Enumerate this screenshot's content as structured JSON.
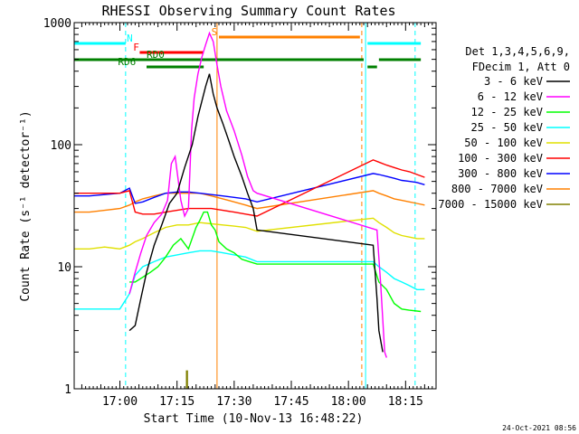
{
  "chart_data": {
    "type": "line",
    "title": "RHESSI Observing Summary Count Rates",
    "xlabel": "Start Time (10-Nov-13 16:48:22)",
    "ylabel": "Count Rate (s⁻¹ detector⁻¹)",
    "yscale": "log",
    "ylim": [
      1,
      1000
    ],
    "xlim_minutes": [
      0,
      95
    ],
    "x_ticks": [
      {
        "min": 12,
        "label": "17:00"
      },
      {
        "min": 27,
        "label": "17:15"
      },
      {
        "min": 42,
        "label": "17:30"
      },
      {
        "min": 57,
        "label": "17:45"
      },
      {
        "min": 72,
        "label": "18:00"
      },
      {
        "min": 87,
        "label": "18:15"
      }
    ],
    "y_ticks": [
      {
        "value": 1,
        "label": "1"
      },
      {
        "value": 10,
        "label": "10"
      },
      {
        "value": 100,
        "label": "100"
      },
      {
        "value": 1000,
        "label": "1000"
      }
    ],
    "legend_header": [
      "Det 1,3,4,5,6,9,",
      "FDecim 1, Att 0"
    ],
    "legend_placement": "right",
    "series": [
      {
        "name": "3 - 6 keV",
        "color": "#000000",
        "x": [
          14.5,
          16,
          17.5,
          19,
          21,
          23,
          25,
          27,
          29,
          31,
          32.5,
          34.5,
          35.5,
          36.5,
          37.5,
          39,
          40.5,
          42,
          44,
          45.5,
          47,
          48,
          78.5,
          79.5,
          80,
          81
        ],
        "y": [
          3,
          3.3,
          5.5,
          9,
          15,
          22,
          33,
          40,
          65,
          100,
          170,
          300,
          380,
          260,
          200,
          150,
          110,
          80,
          55,
          40,
          30,
          20,
          15,
          5.5,
          3,
          2
        ]
      },
      {
        "name": "6 - 12 keV",
        "color": "#ff00ff",
        "x": [
          14.5,
          16,
          17.5,
          19,
          21,
          23,
          24.5,
          25.5,
          26.5,
          28,
          29,
          30,
          30.8,
          31.5,
          32.5,
          33.5,
          34.5,
          35.5,
          36.5,
          37.5,
          38.5,
          40,
          42,
          44,
          45.5,
          47,
          48,
          79.5,
          80.5,
          81.5,
          82
        ],
        "y": [
          6,
          9,
          13,
          18,
          23,
          27,
          35,
          70,
          80,
          35,
          26,
          30,
          130,
          240,
          380,
          520,
          660,
          820,
          700,
          450,
          300,
          190,
          130,
          82,
          55,
          42,
          40,
          20,
          7,
          2,
          1.8
        ]
      },
      {
        "name": "12 - 25 keV",
        "color": "#00ff00",
        "x": [
          14.5,
          16,
          18,
          20,
          22,
          24,
          26,
          28,
          30,
          32,
          33,
          34,
          35,
          36,
          37,
          38,
          40,
          42,
          44,
          46,
          48,
          78.5,
          80,
          82,
          84,
          86,
          88,
          91
        ],
        "y": [
          7.5,
          7.5,
          8.2,
          9,
          10,
          12,
          15,
          17,
          14,
          21,
          24,
          28,
          28,
          22,
          20,
          16,
          14,
          13,
          11.5,
          11,
          10.5,
          10.5,
          7.5,
          6.5,
          5,
          4.5,
          4.4,
          4.3
        ]
      },
      {
        "name": "25 - 50 keV",
        "color": "#00ffff",
        "x": [
          0,
          4,
          8,
          12,
          14.5,
          16,
          18,
          21,
          24,
          27,
          30,
          33,
          36,
          39,
          42,
          45,
          48,
          78.5,
          80,
          82,
          84,
          86,
          88,
          90,
          92
        ],
        "y": [
          4.5,
          4.5,
          4.5,
          4.5,
          6,
          8.5,
          10,
          11,
          12,
          12.5,
          13,
          13.5,
          13.5,
          13,
          12.5,
          12,
          11,
          11,
          10,
          9,
          8,
          7.5,
          7,
          6.5,
          6.5
        ]
      },
      {
        "name": "50 - 100 keV",
        "color": "#e0e000",
        "x": [
          0,
          4,
          8,
          12,
          14.5,
          16,
          18,
          21,
          24,
          27,
          30,
          33,
          36,
          39,
          42,
          45,
          48,
          78.5,
          80,
          82,
          84,
          86,
          88,
          90,
          92
        ],
        "y": [
          14,
          14,
          14.5,
          14,
          15,
          16,
          17,
          19,
          21,
          22,
          22,
          23,
          22.5,
          22,
          21.5,
          21,
          19.5,
          25,
          23,
          21,
          19,
          18,
          17.5,
          17,
          17
        ]
      },
      {
        "name": "100 - 300 keV",
        "color": "#ff0000",
        "x": [
          0,
          4,
          8,
          12,
          14.5,
          16,
          18,
          21,
          24,
          27,
          30,
          33,
          36,
          39,
          42,
          45,
          48,
          78.5,
          80,
          82,
          84,
          86,
          88,
          90,
          92
        ],
        "y": [
          40,
          40,
          40,
          40,
          42,
          28,
          27,
          27,
          28,
          29,
          30,
          30,
          30,
          29,
          28,
          27,
          26,
          75,
          72,
          68,
          65,
          62,
          60,
          57,
          54
        ]
      },
      {
        "name": "300 - 800 keV",
        "color": "#0000ff",
        "x": [
          0,
          4,
          8,
          12,
          14.5,
          16,
          18,
          21,
          24,
          27,
          30,
          33,
          36,
          39,
          42,
          45,
          48,
          78.5,
          80,
          82,
          84,
          86,
          88,
          90,
          92
        ],
        "y": [
          38,
          38,
          39,
          40,
          44,
          33,
          34,
          37,
          40,
          41,
          41,
          40,
          39,
          38,
          37,
          36,
          34,
          58,
          57,
          55,
          53,
          51,
          50,
          49,
          47
        ]
      },
      {
        "name": "800 - 7000 keV",
        "color": "#ff8000",
        "x": [
          0,
          4,
          8,
          12,
          14.5,
          16,
          18,
          21,
          24,
          27,
          30,
          33,
          36,
          39,
          42,
          45,
          48,
          78.5,
          80,
          82,
          84,
          86,
          88,
          90,
          92
        ],
        "y": [
          28,
          28,
          29,
          30,
          32,
          34,
          36,
          38,
          40,
          40,
          40,
          40,
          38,
          36,
          34,
          32,
          30,
          42,
          40,
          38,
          36,
          35,
          34,
          33,
          32
        ]
      },
      {
        "name": "7000 - 15000 keV",
        "color": "#808000",
        "x": [
          29.5,
          29.5,
          29.7,
          29.7
        ],
        "y": [
          1,
          1.4,
          1.4,
          1
        ]
      }
    ],
    "annotations": [
      {
        "label": "N",
        "color": "#00ffff"
      },
      {
        "label": "F",
        "color": "#ff0000"
      },
      {
        "label": "RD0",
        "color": "#008000"
      },
      {
        "label": "RD6",
        "color": "#008000"
      },
      {
        "label": "S",
        "color": "#ff8000"
      }
    ],
    "timestamp": "24-Oct-2021 08:56"
  }
}
